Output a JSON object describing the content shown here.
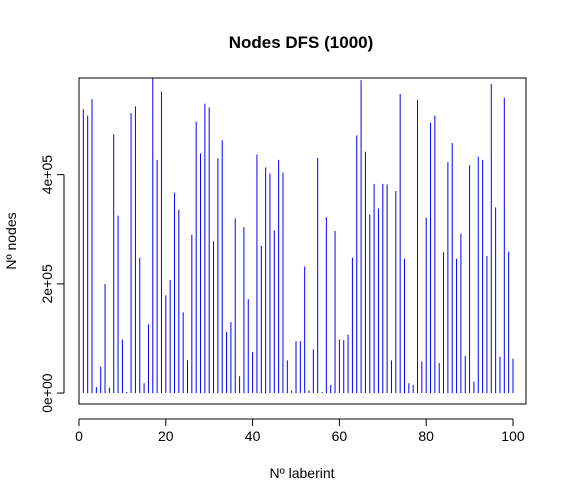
{
  "chart_data": {
    "type": "bar",
    "title": "Nodes DFS (1000)",
    "xlabel": "Nº laberint",
    "ylabel": "Nº nodes",
    "xlim": [
      0,
      103
    ],
    "ylim": [
      -20000,
      577000
    ],
    "x_ticks": [
      0,
      20,
      40,
      60,
      80,
      100
    ],
    "x_tick_labels": [
      "0",
      "20",
      "40",
      "60",
      "80",
      "100"
    ],
    "y_ticks": [
      0,
      200000,
      400000
    ],
    "y_tick_labels": [
      "0e+00",
      "2e+05",
      "4e+05"
    ],
    "grid": false,
    "legend": "none",
    "bar_color": "#0000ff",
    "x": [
      1,
      2,
      3,
      4,
      5,
      6,
      7,
      8,
      9,
      10,
      11,
      12,
      13,
      14,
      15,
      16,
      17,
      18,
      19,
      20,
      21,
      22,
      23,
      24,
      25,
      26,
      27,
      28,
      29,
      30,
      31,
      32,
      33,
      34,
      35,
      36,
      37,
      38,
      39,
      40,
      41,
      42,
      43,
      44,
      45,
      46,
      47,
      48,
      49,
      50,
      51,
      52,
      53,
      54,
      55,
      56,
      57,
      58,
      59,
      60,
      61,
      62,
      63,
      64,
      65,
      66,
      67,
      68,
      69,
      70,
      71,
      72,
      73,
      74,
      75,
      76,
      77,
      78,
      79,
      80,
      81,
      82,
      83,
      84,
      85,
      86,
      87,
      88,
      89,
      90,
      91,
      92,
      93,
      94,
      95,
      96,
      97,
      98,
      99,
      100
    ],
    "values": [
      520000,
      508000,
      538000,
      11000,
      48000,
      200000,
      10000,
      474000,
      325000,
      98000,
      2000,
      513000,
      525000,
      248000,
      18000,
      126000,
      576000,
      427000,
      552000,
      179000,
      207000,
      367000,
      336000,
      148000,
      60000,
      290000,
      497000,
      439000,
      530000,
      523000,
      278000,
      430000,
      463000,
      112000,
      130000,
      320000,
      31000,
      304000,
      172000,
      75000,
      437000,
      270000,
      413000,
      402000,
      298000,
      427000,
      404000,
      60000,
      5000,
      95000,
      95000,
      232000,
      5000,
      80000,
      431000,
      2000,
      322000,
      15000,
      297000,
      98000,
      97000,
      107000,
      248000,
      472000,
      573000,
      442000,
      327000,
      383000,
      338000,
      383000,
      382000,
      60000,
      370000,
      548000,
      246000,
      18000,
      15000,
      537000,
      58000,
      321000,
      495000,
      508000,
      55000,
      258000,
      423000,
      458000,
      246000,
      292000,
      68000,
      417000,
      21000,
      433000,
      427000,
      251000,
      566000,
      340000,
      67000,
      541000,
      259000,
      63000
    ]
  }
}
